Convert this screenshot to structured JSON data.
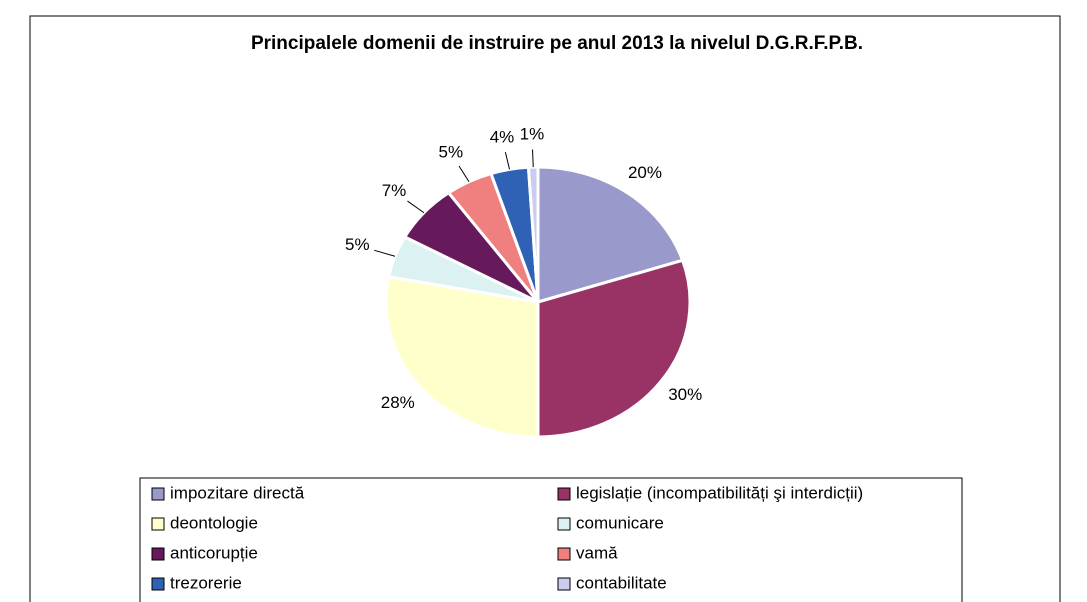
{
  "chart_data": {
    "type": "pie",
    "title": "Principalele domenii de instruire pe anul 2013 la nivelul D.G.R.F.P.B.",
    "categories": [
      "impozitare directă",
      "legislație (incompatibilități şi interdicții)",
      "deontologie",
      "comunicare",
      "anticorupție",
      "vamă",
      "trezorerie",
      "contabilitate"
    ],
    "values": [
      20,
      30,
      28,
      5,
      7,
      5,
      4,
      1
    ],
    "value_labels": [
      "20%",
      "30%",
      "28%",
      "5%",
      "7%",
      "5%",
      "4%",
      "1%"
    ],
    "colors": [
      "#9999cc",
      "#993366",
      "#ffffcc",
      "#dcf2f2",
      "#661a5c",
      "#f08080",
      "#2f62b4",
      "#ccccf0"
    ],
    "legend": "bottom"
  }
}
